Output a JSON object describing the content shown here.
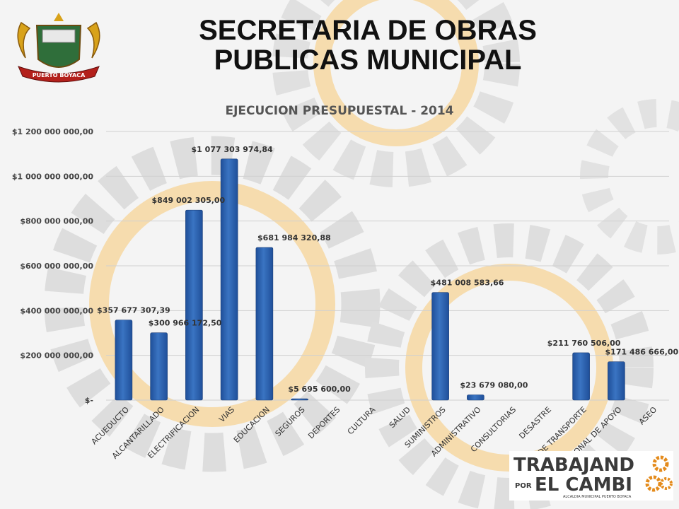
{
  "header": {
    "title_line1": "SECRETARIA DE OBRAS",
    "title_line2": "PUBLICAS MUNICIPAL"
  },
  "logo": {
    "ribbon_text": "PUERTO BOYACA"
  },
  "brand": {
    "line1": "TRABAJAND",
    "line2_prefix": "POR",
    "line2": "EL CAMBI",
    "tagline": "ALCALDIA MUNICIPAL PUERTO BOYACA"
  },
  "colors": {
    "bar": "#3a74c2",
    "bar_dark": "#1f4f99",
    "gear_gray": "#d6d6d6",
    "gear_orange": "#f3c98a",
    "brand_orange": "#e48b1c"
  },
  "chart_data": {
    "type": "bar",
    "title": "EJECUCION PRESUPUESTAL - 2014",
    "xlabel": "",
    "ylabel": "",
    "ylim": [
      0,
      1200000000
    ],
    "yticks": [
      {
        "value": 0,
        "label": "$-"
      },
      {
        "value": 200000000,
        "label": "$200 000 000,00"
      },
      {
        "value": 400000000,
        "label": "$400 000 000,00"
      },
      {
        "value": 600000000,
        "label": "$600 000 000,00"
      },
      {
        "value": 800000000,
        "label": "$800 000 000,00"
      },
      {
        "value": 1000000000,
        "label": "$1 000 000 000,00"
      },
      {
        "value": 1200000000,
        "label": "$1 200 000 000,00"
      }
    ],
    "grid": true,
    "categories": [
      "ACUEDUCTO",
      "ALCANTARILLADO",
      "ELECTRIFICACION",
      "VIAS",
      "EDUCACION",
      "SEGUROS",
      "DEPORTES",
      "CULTURA",
      "SALUD",
      "SUMINISTROS",
      "ADMINISTRATIVO",
      "CONSULTORIAS",
      "DESASTRE",
      "SERVICIO DE TRANSPORTE",
      "PERSONAL DE APOYO",
      "ASEO"
    ],
    "values": [
      357677307.39,
      300966172.5,
      849002305.0,
      1077303974.84,
      681984320.88,
      5695600.0,
      null,
      null,
      null,
      481008583.66,
      23679080.0,
      null,
      null,
      211760506.0,
      171486666.0,
      null
    ],
    "data_labels": [
      "$357 677 307,39",
      "$300 966 172,50",
      "$849 002 305,00",
      "$1 077 303 974,84",
      "$681 984 320,88",
      "$5 695 600,00",
      "",
      "",
      "",
      "$481 008 583,66",
      "$23 679 080,00",
      "",
      "",
      "$211 760 506,00",
      "$171 486 666,00",
      ""
    ]
  }
}
